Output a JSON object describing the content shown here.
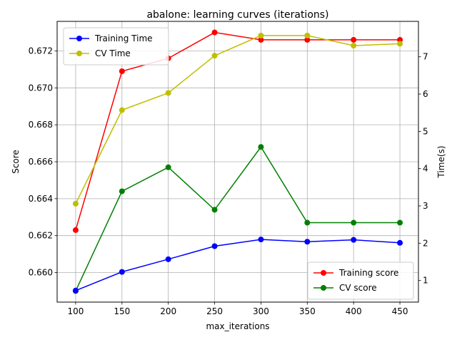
{
  "chart_data": {
    "type": "line",
    "title": "abalone: learning curves (iterations)",
    "xlabel": "max_iterations",
    "ylabel_left": "Score",
    "ylabel_right": "Time(s)",
    "x": [
      100,
      150,
      200,
      250,
      300,
      350,
      400,
      450
    ],
    "xlim": [
      80,
      470
    ],
    "ylim_left": [
      0.6584,
      0.6736
    ],
    "ylim_right": [
      0.42,
      7.95
    ],
    "grid": true,
    "x_ticks": [
      100,
      150,
      200,
      250,
      300,
      350,
      400,
      450
    ],
    "y_ticks_left": [
      "0.660",
      "0.662",
      "0.664",
      "0.666",
      "0.668",
      "0.670",
      "0.672"
    ],
    "y_ticks_right": [
      "1",
      "2",
      "3",
      "4",
      "5",
      "6",
      "7"
    ],
    "series_left": [
      {
        "name": "Training score",
        "color": "#ff0000",
        "values": [
          0.6623,
          0.6709,
          0.6716,
          0.673,
          0.6726,
          0.6726,
          0.6726,
          0.6726
        ]
      },
      {
        "name": "CV score",
        "color": "#008000",
        "values": [
          0.659,
          0.6644,
          0.6657,
          0.6634,
          0.6668,
          0.6627,
          0.6627,
          0.6627
        ]
      }
    ],
    "series_right": [
      {
        "name": "Training Time",
        "color": "#0000ff",
        "values": [
          0.73,
          1.23,
          1.57,
          1.92,
          2.1,
          2.04,
          2.09,
          2.01
        ]
      },
      {
        "name": "CV Time",
        "color": "#bfbf00",
        "values": [
          3.06,
          5.57,
          6.03,
          7.03,
          7.57,
          7.57,
          7.3,
          7.35
        ]
      }
    ],
    "legend_right_series": "top-left",
    "legend_left_series": "bottom-right"
  }
}
